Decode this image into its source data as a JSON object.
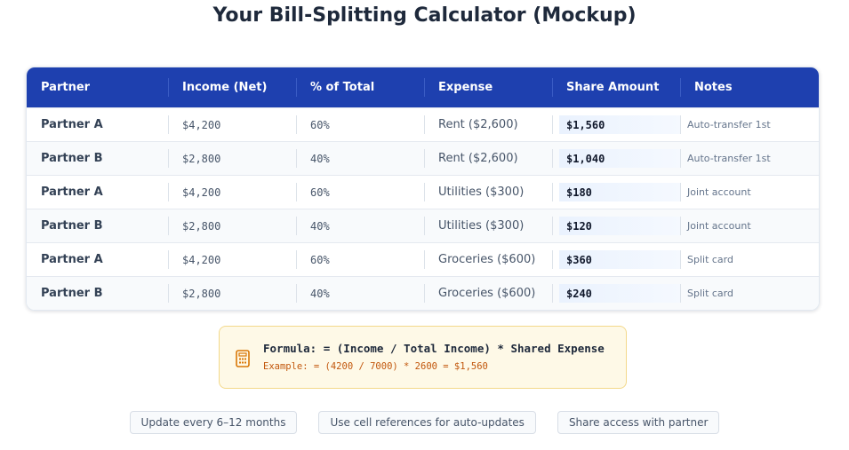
{
  "header": {
    "title": "Your Bill-Splitting Calculator (Mockup)"
  },
  "table": {
    "columns": [
      "Partner",
      "Income (Net)",
      "% of Total",
      "Expense",
      "Share Amount",
      "Notes"
    ],
    "rows": [
      [
        "Partner A",
        "$4,200",
        "60%",
        "Rent ($2,600)",
        "$1,560",
        "Auto-transfer 1st"
      ],
      [
        "Partner B",
        "$2,800",
        "40%",
        "Rent ($2,600)",
        "$1,040",
        "Auto-transfer 1st"
      ],
      [
        "Partner A",
        "$4,200",
        "60%",
        "Utilities ($300)",
        "$180",
        "Joint account"
      ],
      [
        "Partner B",
        "$2,800",
        "40%",
        "Utilities ($300)",
        "$120",
        "Joint account"
      ],
      [
        "Partner A",
        "$4,200",
        "60%",
        "Groceries ($600)",
        "$360",
        "Split card"
      ],
      [
        "Partner B",
        "$2,800",
        "40%",
        "Groceries ($600)",
        "$240",
        "Split card"
      ]
    ]
  },
  "formula": {
    "main": "Formula: = (Income / Total Income) * Shared Expense",
    "example": "Example: = (4200 / 7000) * 2600 = $1,560"
  },
  "tips": [
    "Update every 6–12 months",
    "Use cell references for auto-updates",
    "Share access with partner"
  ]
}
